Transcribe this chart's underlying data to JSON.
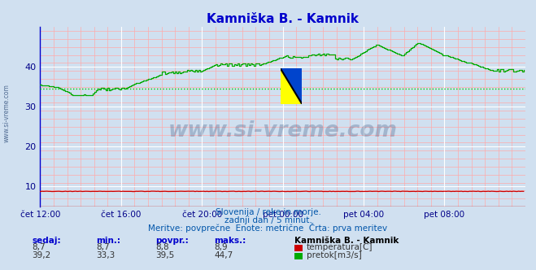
{
  "title": "Kamniška B. - Kamnik",
  "title_color": "#0000cc",
  "bg_color": "#d0e0f0",
  "plot_bg_color": "#d0e0f0",
  "grid_color_major": "#ffffff",
  "grid_color_minor": "#ffaaaa",
  "xlabel_color": "#000088",
  "x_ticks": [
    "čet 12:00",
    "čet 16:00",
    "čet 20:00",
    "pet 00:00",
    "pet 04:00",
    "pet 08:00"
  ],
  "x_tick_positions": [
    0,
    48,
    96,
    144,
    192,
    240
  ],
  "y_ticks": [
    10,
    20,
    30,
    40
  ],
  "ylim": [
    5,
    50
  ],
  "xlim": [
    0,
    288
  ],
  "temp_color": "#cc0000",
  "flow_color": "#00aa00",
  "flow_avg_color": "#00cc00",
  "flow_avg": 34.5,
  "watermark_color": "#1a3a6a",
  "sub1": "Slovenija / reke in morje.",
  "sub2": "zadnji dan / 5 minut.",
  "sub3": "Meritve: povprečne  Enote: metrične  Črta: prva meritev",
  "subtitle_color": "#0055aa",
  "legend_title": "Kamniška B. - Kamnik"
}
